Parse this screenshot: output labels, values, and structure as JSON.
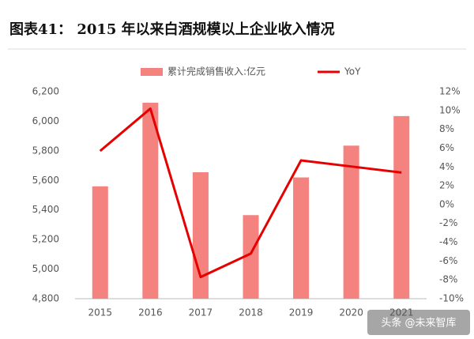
{
  "chart_data": {
    "type": "bar_line",
    "title": "图表41： 2015 年以来白酒规模以上企业收入情况",
    "categories": [
      "2015",
      "2016",
      "2017",
      "2018",
      "2019",
      "2020",
      "2021"
    ],
    "series": [
      {
        "name": "累计完成销售收入:亿元",
        "type": "bar",
        "color": "#f4827e",
        "values": [
          5560,
          6125,
          5655,
          5365,
          5620,
          5835,
          6035
        ]
      },
      {
        "name": "YoY",
        "type": "line",
        "axis": "y2",
        "color": "#e60000",
        "values": [
          5.7,
          10.2,
          -7.7,
          -5.2,
          4.7,
          4.05,
          3.4
        ]
      }
    ],
    "ylim": [
      4800,
      6200
    ],
    "yticks": [
      {
        "value": 4800,
        "label": "4,800"
      },
      {
        "value": 5000,
        "label": "5,000"
      },
      {
        "value": 5200,
        "label": "5,200"
      },
      {
        "value": 5400,
        "label": "5,400"
      },
      {
        "value": 5600,
        "label": "5,600"
      },
      {
        "value": 5800,
        "label": "5,800"
      },
      {
        "value": 6000,
        "label": "6,000"
      },
      {
        "value": 6200,
        "label": "6,200"
      }
    ],
    "y2lim": [
      -10,
      12
    ],
    "y2ticks": [
      {
        "value": -10,
        "label": "-10%"
      },
      {
        "value": -8,
        "label": "-8%"
      },
      {
        "value": -6,
        "label": "-6%"
      },
      {
        "value": -4,
        "label": "-4%"
      },
      {
        "value": -2,
        "label": "-2%"
      },
      {
        "value": 0,
        "label": "0%"
      },
      {
        "value": 2,
        "label": "2%"
      },
      {
        "value": 4,
        "label": "4%"
      },
      {
        "value": 6,
        "label": "6%"
      },
      {
        "value": 8,
        "label": "8%"
      },
      {
        "value": 10,
        "label": "10%"
      },
      {
        "value": 12,
        "label": "12%"
      }
    ],
    "grid": false,
    "legend": "top",
    "watermark": "头条 @未来智库"
  }
}
